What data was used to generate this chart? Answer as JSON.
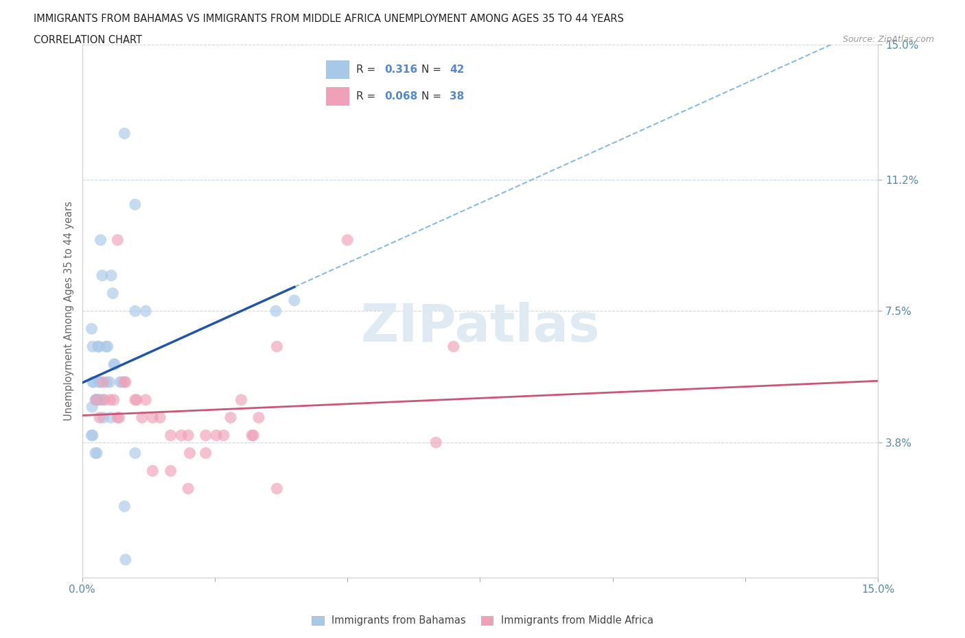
{
  "title_line1": "IMMIGRANTS FROM BAHAMAS VS IMMIGRANTS FROM MIDDLE AFRICA UNEMPLOYMENT AMONG AGES 35 TO 44 YEARS",
  "title_line2": "CORRELATION CHART",
  "source": "Source: ZipAtlas.com",
  "ylabel": "Unemployment Among Ages 35 to 44 years",
  "xlim": [
    0,
    15
  ],
  "ylim": [
    0,
    15
  ],
  "ytick_values": [
    3.8,
    7.5,
    11.2,
    15.0
  ],
  "watermark_text": "ZIPatlas",
  "bahamas_color": "#a8c8e8",
  "bahamas_line_color": "#2255aa",
  "bahamas_dash_color": "#88bbdd",
  "middle_africa_color": "#f0a0b8",
  "middle_africa_line_color": "#cc5577",
  "bahamas_R": "0.316",
  "bahamas_N": "42",
  "middle_africa_R": "0.068",
  "middle_africa_N": "38",
  "bahamas_x": [
    0.8,
    1.0,
    0.35,
    0.38,
    0.55,
    0.58,
    1.0,
    1.2,
    0.18,
    0.2,
    0.3,
    0.32,
    0.45,
    0.48,
    0.6,
    0.62,
    0.72,
    0.75,
    0.2,
    0.22,
    0.32,
    0.35,
    0.47,
    0.52,
    0.32,
    0.34,
    0.4,
    0.25,
    0.27,
    0.29,
    0.19,
    0.4,
    0.54,
    3.65,
    4.0,
    0.18,
    0.2,
    0.25,
    0.28,
    1.0,
    0.8,
    0.82
  ],
  "bahamas_y": [
    12.5,
    10.5,
    9.5,
    8.5,
    8.5,
    8.0,
    7.5,
    7.5,
    7.0,
    6.5,
    6.5,
    6.5,
    6.5,
    6.5,
    6.0,
    6.0,
    5.5,
    5.5,
    5.5,
    5.5,
    5.5,
    5.5,
    5.5,
    5.5,
    5.0,
    5.0,
    5.0,
    5.0,
    5.0,
    5.0,
    4.8,
    4.5,
    4.5,
    7.5,
    7.8,
    4.0,
    4.0,
    3.5,
    3.5,
    3.5,
    2.0,
    0.5
  ],
  "middle_africa_x": [
    0.27,
    0.33,
    0.4,
    0.42,
    0.53,
    0.6,
    0.67,
    0.7,
    0.67,
    0.8,
    0.82,
    1.0,
    1.03,
    1.13,
    1.2,
    1.33,
    1.47,
    1.67,
    1.87,
    2.0,
    2.03,
    2.33,
    2.53,
    2.67,
    2.8,
    3.0,
    3.2,
    3.23,
    3.33,
    3.67,
    5.0,
    6.67,
    7.0,
    2.33,
    1.33,
    1.67,
    2.0,
    3.67
  ],
  "middle_africa_y": [
    5.0,
    4.5,
    5.5,
    5.0,
    5.0,
    5.0,
    4.5,
    4.5,
    9.5,
    5.5,
    5.5,
    5.0,
    5.0,
    4.5,
    5.0,
    4.5,
    4.5,
    4.0,
    4.0,
    4.0,
    3.5,
    3.5,
    4.0,
    4.0,
    4.5,
    5.0,
    4.0,
    4.0,
    4.5,
    6.5,
    9.5,
    3.8,
    6.5,
    4.0,
    3.0,
    3.0,
    2.5,
    2.5
  ]
}
